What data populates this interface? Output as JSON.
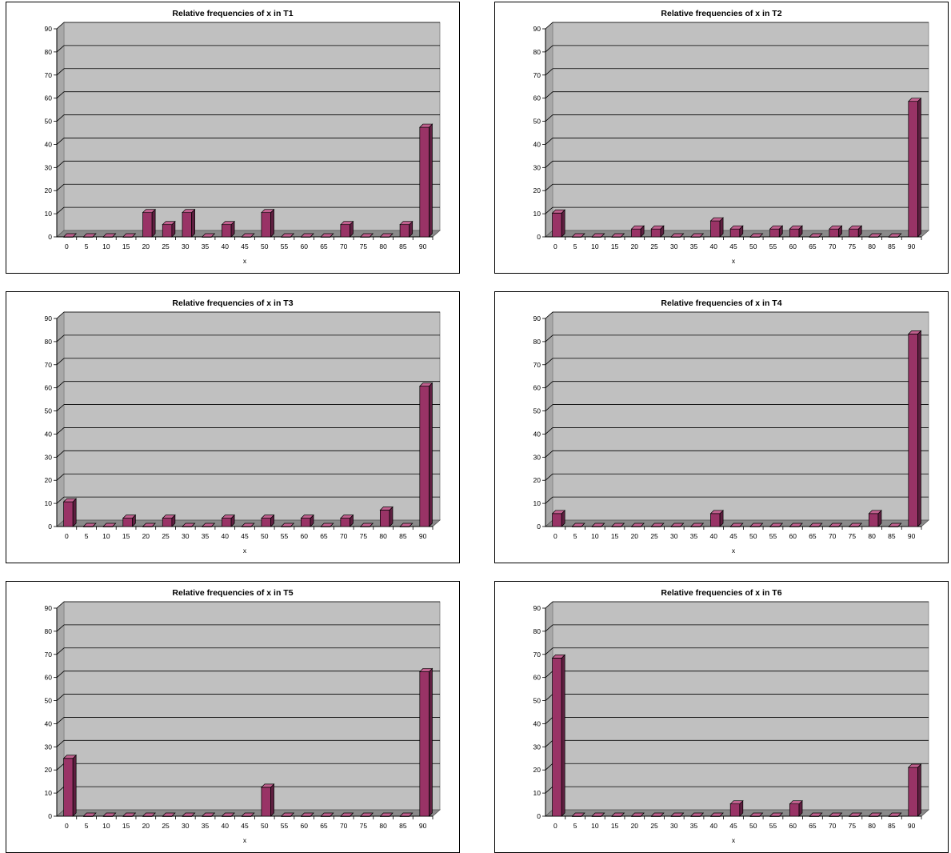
{
  "chart_data": [
    {
      "type": "bar",
      "title": "Relative frequencies of x in T1",
      "xlabel": "x",
      "ylabel": "",
      "categories": [
        "0",
        "5",
        "10",
        "15",
        "20",
        "25",
        "30",
        "35",
        "40",
        "45",
        "50",
        "55",
        "60",
        "65",
        "70",
        "75",
        "80",
        "85",
        "90"
      ],
      "values": [
        0,
        0,
        0,
        0,
        10.5,
        5.3,
        10.5,
        0,
        5.3,
        0,
        10.5,
        0,
        0,
        0,
        5.3,
        0,
        0,
        5.3,
        47.4
      ],
      "ylim": [
        0,
        90
      ],
      "yticks": [
        0,
        10,
        20,
        30,
        40,
        50,
        60,
        70,
        80,
        90
      ],
      "grid": true,
      "style": "3d-column",
      "colors": {
        "bar": "#993366",
        "bar_top": "#c0608e",
        "bar_side": "#5e1f40",
        "wall": "#c0c0c0",
        "floor": "#8a8a8a"
      }
    },
    {
      "type": "bar",
      "title": "Relative frequencies of x in T2",
      "xlabel": "x",
      "ylabel": "",
      "categories": [
        "0",
        "5",
        "10",
        "15",
        "20",
        "25",
        "30",
        "35",
        "40",
        "45",
        "50",
        "55",
        "60",
        "65",
        "70",
        "75",
        "80",
        "85",
        "90"
      ],
      "values": [
        10.3,
        0,
        0,
        0,
        3.4,
        3.4,
        0,
        0,
        6.9,
        3.4,
        0,
        3.4,
        3.4,
        0,
        3.4,
        3.4,
        0,
        0,
        58.6
      ],
      "ylim": [
        0,
        90
      ],
      "yticks": [
        0,
        10,
        20,
        30,
        40,
        50,
        60,
        70,
        80,
        90
      ],
      "grid": true,
      "style": "3d-column",
      "colors": {
        "bar": "#993366",
        "bar_top": "#c0608e",
        "bar_side": "#5e1f40",
        "wall": "#c0c0c0",
        "floor": "#8a8a8a"
      }
    },
    {
      "type": "bar",
      "title": "Relative frequencies of x in T3",
      "xlabel": "x",
      "ylabel": "",
      "categories": [
        "0",
        "5",
        "10",
        "15",
        "20",
        "25",
        "30",
        "35",
        "40",
        "45",
        "50",
        "55",
        "60",
        "65",
        "70",
        "75",
        "80",
        "85",
        "90"
      ],
      "values": [
        10.7,
        0,
        0,
        3.6,
        0,
        3.6,
        0,
        0,
        3.6,
        0,
        3.6,
        0,
        3.6,
        0,
        3.6,
        0,
        7.1,
        0,
        60.7
      ],
      "ylim": [
        0,
        90
      ],
      "yticks": [
        0,
        10,
        20,
        30,
        40,
        50,
        60,
        70,
        80,
        90
      ],
      "grid": true,
      "style": "3d-column",
      "colors": {
        "bar": "#993366",
        "bar_top": "#c0608e",
        "bar_side": "#5e1f40",
        "wall": "#c0c0c0",
        "floor": "#8a8a8a"
      }
    },
    {
      "type": "bar",
      "title": "Relative frequencies of x in T4",
      "xlabel": "x",
      "ylabel": "",
      "categories": [
        "0",
        "5",
        "10",
        "15",
        "20",
        "25",
        "30",
        "35",
        "40",
        "45",
        "50",
        "55",
        "60",
        "65",
        "70",
        "75",
        "80",
        "85",
        "90"
      ],
      "values": [
        5.6,
        0,
        0,
        0,
        0,
        0,
        0,
        0,
        5.6,
        0,
        0,
        0,
        0,
        0,
        0,
        0,
        5.6,
        0,
        83.3
      ],
      "ylim": [
        0,
        90
      ],
      "yticks": [
        0,
        10,
        20,
        30,
        40,
        50,
        60,
        70,
        80,
        90
      ],
      "grid": true,
      "style": "3d-column",
      "colors": {
        "bar": "#993366",
        "bar_top": "#c0608e",
        "bar_side": "#5e1f40",
        "wall": "#c0c0c0",
        "floor": "#8a8a8a"
      }
    },
    {
      "type": "bar",
      "title": "Relative frequencies of x in T5",
      "xlabel": "x",
      "ylabel": "",
      "categories": [
        "0",
        "5",
        "10",
        "15",
        "20",
        "25",
        "30",
        "35",
        "40",
        "45",
        "50",
        "55",
        "60",
        "65",
        "70",
        "75",
        "80",
        "85",
        "90"
      ],
      "values": [
        25,
        0,
        0,
        0,
        0,
        0,
        0,
        0,
        0,
        0,
        12.5,
        0,
        0,
        0,
        0,
        0,
        0,
        0,
        62.5
      ],
      "ylim": [
        0,
        90
      ],
      "yticks": [
        0,
        10,
        20,
        30,
        40,
        50,
        60,
        70,
        80,
        90
      ],
      "grid": true,
      "style": "3d-column",
      "colors": {
        "bar": "#993366",
        "bar_top": "#c0608e",
        "bar_side": "#5e1f40",
        "wall": "#c0c0c0",
        "floor": "#8a8a8a"
      }
    },
    {
      "type": "bar",
      "title": "Relative frequencies of x in T6",
      "xlabel": "x",
      "ylabel": "",
      "categories": [
        "0",
        "5",
        "10",
        "15",
        "20",
        "25",
        "30",
        "35",
        "40",
        "45",
        "50",
        "55",
        "60",
        "65",
        "70",
        "75",
        "80",
        "85",
        "90"
      ],
      "values": [
        68.4,
        0,
        0,
        0,
        0,
        0,
        0,
        0,
        0,
        5.3,
        0,
        0,
        5.3,
        0,
        0,
        0,
        0,
        0,
        21.1
      ],
      "ylim": [
        0,
        90
      ],
      "yticks": [
        0,
        10,
        20,
        30,
        40,
        50,
        60,
        70,
        80,
        90
      ],
      "grid": true,
      "style": "3d-column",
      "colors": {
        "bar": "#993366",
        "bar_top": "#c0608e",
        "bar_side": "#5e1f40",
        "wall": "#c0c0c0",
        "floor": "#8a8a8a"
      }
    }
  ]
}
